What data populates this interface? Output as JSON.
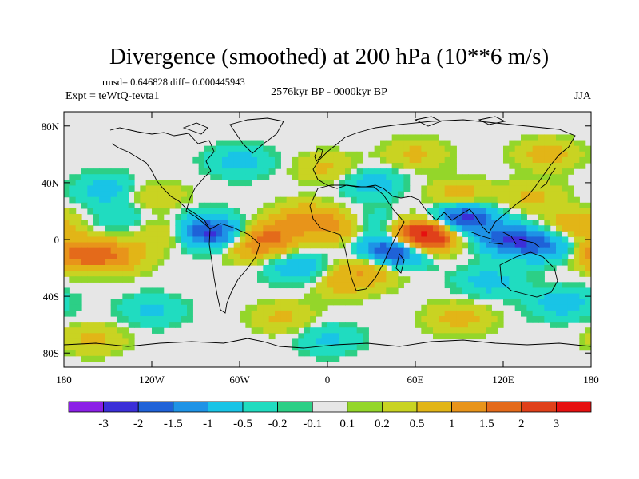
{
  "chart_data": {
    "type": "heatmap",
    "title": "Divergence (smoothed) at 200 hPa (10**6 m/s)",
    "stats_text": "rmsd= 0.646828 diff= 0.000445943",
    "left_label": "Expt = teWtQ-tevta1",
    "center_label": "2576kyr BP - 0000kyr BP",
    "right_label": "JJA",
    "x_range": [
      -180,
      180
    ],
    "y_range": [
      -90,
      90
    ],
    "x_ticks": [
      {
        "value": -180,
        "label": "180"
      },
      {
        "value": -120,
        "label": "120W"
      },
      {
        "value": -60,
        "label": "60W"
      },
      {
        "value": 0,
        "label": "0"
      },
      {
        "value": 60,
        "label": "60E"
      },
      {
        "value": 120,
        "label": "120E"
      },
      {
        "value": 180,
        "label": "180"
      }
    ],
    "y_ticks": [
      {
        "value": 80,
        "label": "80N"
      },
      {
        "value": 40,
        "label": "40N"
      },
      {
        "value": 0,
        "label": "0"
      },
      {
        "value": -40,
        "label": "40S"
      },
      {
        "value": -80,
        "label": "80S"
      }
    ],
    "colorbar": {
      "colors": [
        "#8b1fe6",
        "#3b2fd8",
        "#1f62d8",
        "#1e93e6",
        "#19c4e6",
        "#20dcc0",
        "#2ccf86",
        "#e6e6e6",
        "#94d62a",
        "#c9d322",
        "#e2b517",
        "#e8941a",
        "#e46a1a",
        "#e0401a",
        "#e61010"
      ],
      "labels": [
        "-3",
        "-2",
        "-1.5",
        "-1",
        "-0.5",
        "-0.2",
        "-0.1",
        "0.1",
        "0.2",
        "0.5",
        "1",
        "1.5",
        "2",
        "3"
      ]
    },
    "features": [
      {
        "lon": 60,
        "lat": -2,
        "value": 3.2
      },
      {
        "lon": 68,
        "lat": 5,
        "value": 2.2
      },
      {
        "lon": 45,
        "lat": -8,
        "value": -2.4
      },
      {
        "lon": 55,
        "lat": -5,
        "value": -1.8
      },
      {
        "lon": 92,
        "lat": 15,
        "value": -2.5
      },
      {
        "lon": 125,
        "lat": 0,
        "value": -1.8
      },
      {
        "lon": 150,
        "lat": -5,
        "value": -1.2
      },
      {
        "lon": -170,
        "lat": -10,
        "value": 1.6
      },
      {
        "lon": -145,
        "lat": -12,
        "value": 1.1
      },
      {
        "lon": -110,
        "lat": 5,
        "value": 0.8
      },
      {
        "lon": -85,
        "lat": 7,
        "value": -1.6
      },
      {
        "lon": -72,
        "lat": 2,
        "value": -1.1
      },
      {
        "lon": -40,
        "lat": 2,
        "value": 1.4
      },
      {
        "lon": -55,
        "lat": -5,
        "value": 0.9
      },
      {
        "lon": -15,
        "lat": 15,
        "value": 1.0
      },
      {
        "lon": 10,
        "lat": 8,
        "value": 1.1
      },
      {
        "lon": 30,
        "lat": -20,
        "value": 1.0
      },
      {
        "lon": -20,
        "lat": -20,
        "value": -0.9
      },
      {
        "lon": 10,
        "lat": -30,
        "value": 0.7
      },
      {
        "lon": 110,
        "lat": -30,
        "value": -0.7
      },
      {
        "lon": 140,
        "lat": 30,
        "value": 0.6
      },
      {
        "lon": 90,
        "lat": 30,
        "value": 0.9
      },
      {
        "lon": 30,
        "lat": 40,
        "value": -0.8
      },
      {
        "lon": 0,
        "lat": 50,
        "value": 0.6
      },
      {
        "lon": -150,
        "lat": 35,
        "value": -0.8
      },
      {
        "lon": -120,
        "lat": 30,
        "value": 0.6
      },
      {
        "lon": -30,
        "lat": -55,
        "value": 0.6
      },
      {
        "lon": -120,
        "lat": -50,
        "value": -0.6
      },
      {
        "lon": 90,
        "lat": -55,
        "value": 0.7
      },
      {
        "lon": 160,
        "lat": -45,
        "value": -0.8
      },
      {
        "lon": -160,
        "lat": -70,
        "value": 0.6
      },
      {
        "lon": 0,
        "lat": -70,
        "value": -0.6
      },
      {
        "lon": 150,
        "lat": 60,
        "value": 0.7
      },
      {
        "lon": -60,
        "lat": 55,
        "value": -0.7
      },
      {
        "lon": 60,
        "lat": 60,
        "value": 0.6
      },
      {
        "lon": -140,
        "lat": 15,
        "value": -0.5
      },
      {
        "lon": 170,
        "lat": 10,
        "value": 0.9
      },
      {
        "lon": 30,
        "lat": 10,
        "value": -0.8
      }
    ]
  }
}
